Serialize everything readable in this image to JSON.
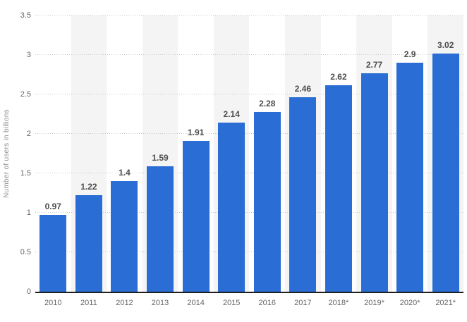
{
  "chart_data": {
    "type": "bar",
    "title": "",
    "categories": [
      "2010",
      "2011",
      "2012",
      "2013",
      "2014",
      "2015",
      "2016",
      "2017",
      "2018*",
      "2019*",
      "2020*",
      "2021*"
    ],
    "values": [
      0.97,
      1.22,
      1.4,
      1.59,
      1.91,
      2.14,
      2.28,
      2.46,
      2.62,
      2.77,
      2.9,
      3.02
    ],
    "value_labels": [
      "0.97",
      "1.22",
      "1.4",
      "1.59",
      "1.91",
      "2.14",
      "2.28",
      "2.46",
      "2.62",
      "2.77",
      "2.9",
      "3.02"
    ],
    "xlabel": "",
    "ylabel": "Number of users in billions",
    "ylim": [
      0,
      3.5
    ],
    "yticks": [
      "0",
      "0.5",
      "1",
      "1.5",
      "2",
      "2.5",
      "3",
      "3.5"
    ],
    "grid": "horizontal dotted lines at each 0.5 step",
    "legend": "none",
    "layout": {
      "bands": "alternating light-gray vertical bands behind odd columns (2011, 2013, 2015, 2017, 2019*, 2021*)"
    },
    "colors": {
      "bar": "#2a6dd4",
      "column_band": "#f4f4f4",
      "gridline": "#c9c9c9",
      "axis_line": "#1f1f1f",
      "tick_label": "#666666",
      "value_label": "#4d4d4d",
      "axis_title": "#8f8f8f",
      "background": "#ffffff"
    }
  }
}
